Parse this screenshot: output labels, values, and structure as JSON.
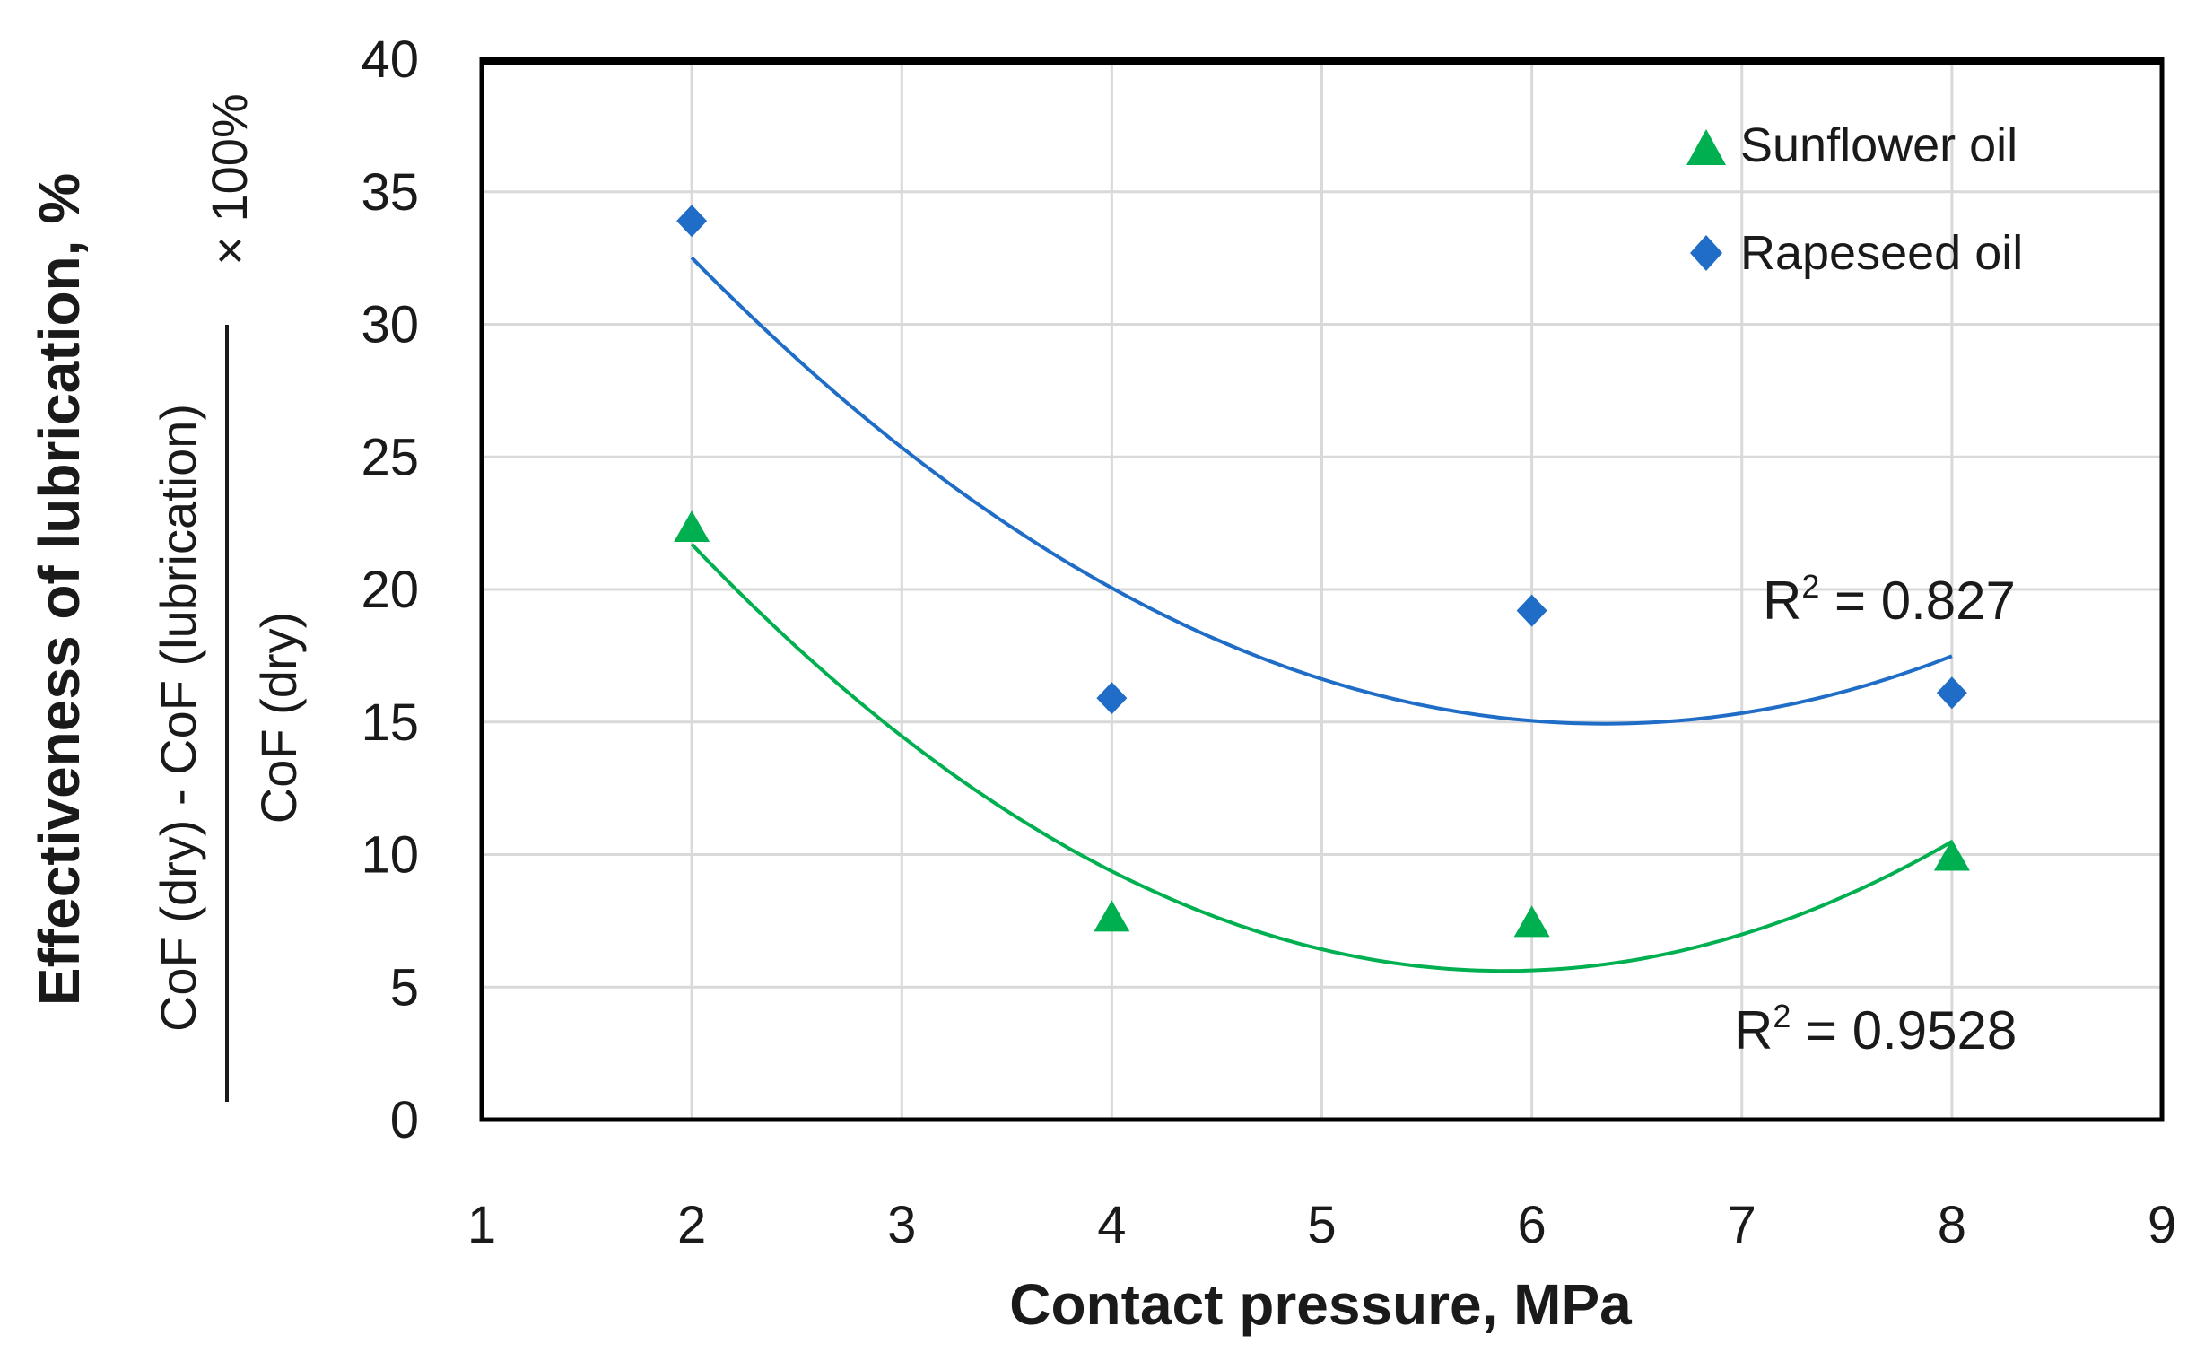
{
  "chart_data": {
    "type": "scatter",
    "x_axis": {
      "label": "Contact pressure, MPa",
      "range": [
        1,
        9
      ],
      "ticks": [
        1,
        2,
        3,
        4,
        5,
        6,
        7,
        8,
        9
      ],
      "tick_labels": [
        "1",
        "2",
        "3",
        "4",
        "5",
        "6",
        "7",
        "8",
        "9"
      ]
    },
    "y_axis": {
      "label": "Effectiveness of lubrication, %",
      "formula_numerator": "CoF (dry) - CoF (lubrication)",
      "formula_denominator": "CoF (dry)",
      "formula_multiplier": "× 100%",
      "range": [
        0,
        40
      ],
      "ticks": [
        0,
        5,
        10,
        15,
        20,
        25,
        30,
        35,
        40
      ],
      "tick_labels": [
        "0",
        "5",
        "10",
        "15",
        "20",
        "25",
        "30",
        "35",
        "40"
      ]
    },
    "grid": true,
    "legend_position": "top-right",
    "series": [
      {
        "name": "Sunflower oil",
        "marker": "triangle",
        "color": "#00B050",
        "x": [
          2,
          4,
          6,
          8
        ],
        "y": [
          22.3,
          7.6,
          7.4,
          9.9
        ],
        "trendline": {
          "type": "polynomial",
          "order": 2,
          "r2_label": "R",
          "r2_exp": "2",
          "r2_value": " = 0.9528",
          "color": "#00B050"
        }
      },
      {
        "name": "Rapeseed oil",
        "marker": "diamond",
        "color": "#1F6DC6",
        "x": [
          2,
          4,
          6,
          8
        ],
        "y": [
          33.9,
          15.9,
          19.2,
          16.1
        ],
        "trendline": {
          "type": "polynomial",
          "order": 2,
          "r2_label": "R",
          "r2_exp": "2",
          "r2_value": " = 0.827",
          "color": "#1F6DC6"
        }
      }
    ]
  }
}
